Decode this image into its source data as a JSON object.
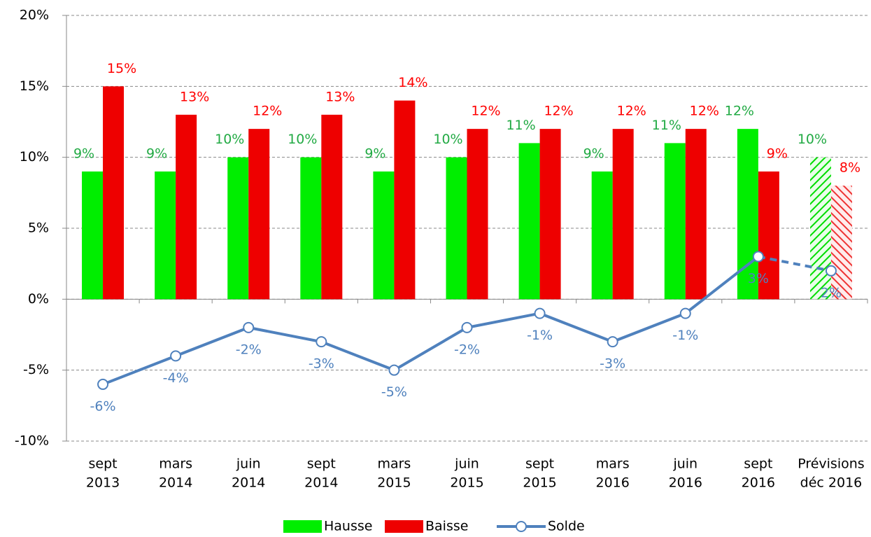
{
  "chart_data": {
    "type": "bar-line",
    "categories": [
      [
        "sept",
        "2013"
      ],
      [
        "mars",
        "2014"
      ],
      [
        "juin",
        "2014"
      ],
      [
        "sept",
        "2014"
      ],
      [
        "mars",
        "2015"
      ],
      [
        "juin",
        "2015"
      ],
      [
        "sept",
        "2015"
      ],
      [
        "mars",
        "2016"
      ],
      [
        "juin",
        "2016"
      ],
      [
        "sept",
        "2016"
      ],
      [
        "Prévisions",
        "déc 2016"
      ]
    ],
    "series": [
      {
        "name": "Hausse",
        "color": "#00ee00",
        "label_color": "#22aa44",
        "kind": "bar",
        "values": [
          9,
          9,
          10,
          10,
          9,
          10,
          11,
          9,
          11,
          12,
          10
        ],
        "value_labels": [
          "9%",
          "9%",
          "10%",
          "10%",
          "9%",
          "10%",
          "11%",
          "9%",
          "11%",
          "12%",
          "10%"
        ]
      },
      {
        "name": "Baisse",
        "color": "#ee0000",
        "label_color": "#ff0000",
        "kind": "bar",
        "values": [
          15,
          13,
          12,
          13,
          14,
          12,
          12,
          12,
          12,
          9,
          8
        ],
        "value_labels": [
          "15%",
          "13%",
          "12%",
          "13%",
          "14%",
          "12%",
          "12%",
          "12%",
          "12%",
          "9%",
          "8%"
        ]
      },
      {
        "name": "Solde",
        "color": "#4f81bd",
        "label_color": "#4f81bd",
        "kind": "line",
        "values": [
          -6,
          -4,
          -2,
          -3,
          -5,
          -2,
          -1,
          -3,
          -1,
          3,
          2
        ],
        "value_labels": [
          "-6%",
          "-4%",
          "-2%",
          "-3%",
          "-5%",
          "-2%",
          "-1%",
          "-3%",
          "-1%",
          "3%",
          "2%"
        ]
      }
    ],
    "forecast_index": 10,
    "ylim": [
      -10,
      20
    ],
    "yticks": [
      {
        "value": -10,
        "label": "-10%"
      },
      {
        "value": -5,
        "label": "-5%"
      },
      {
        "value": 0,
        "label": "0%"
      },
      {
        "value": 5,
        "label": "5%"
      },
      {
        "value": 10,
        "label": "10%"
      },
      {
        "value": 15,
        "label": "15%"
      },
      {
        "value": 20,
        "label": "20%"
      }
    ],
    "grid": true,
    "legend": "bottom"
  }
}
